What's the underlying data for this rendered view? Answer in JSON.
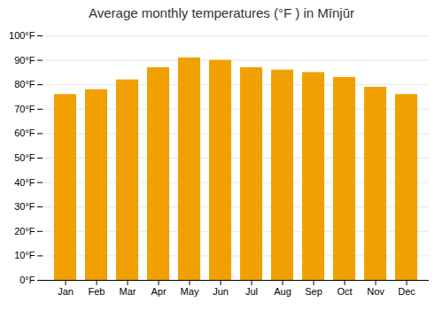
{
  "chart_data": {
    "type": "bar",
    "title": "Average monthly temperatures (°F ) in Mīnjūr",
    "categories": [
      "Jan",
      "Feb",
      "Mar",
      "Apr",
      "May",
      "Jun",
      "Jul",
      "Aug",
      "Sep",
      "Oct",
      "Nov",
      "Dec"
    ],
    "values": [
      76,
      78,
      82,
      87,
      91,
      90,
      87,
      86,
      85,
      83,
      79,
      76
    ],
    "color": "#F0A000",
    "ylim": [
      0,
      100
    ],
    "yticks": [
      {
        "value": 0,
        "label": "0°F"
      },
      {
        "value": 10,
        "label": "10°F"
      },
      {
        "value": 20,
        "label": "20°F"
      },
      {
        "value": 30,
        "label": "30°F"
      },
      {
        "value": 40,
        "label": "40°F"
      },
      {
        "value": 50,
        "label": "50°F"
      },
      {
        "value": 60,
        "label": "60°F"
      },
      {
        "value": 70,
        "label": "70°F"
      },
      {
        "value": 80,
        "label": "80°F"
      },
      {
        "value": 90,
        "label": "90°F"
      },
      {
        "value": 100,
        "label": "100°F"
      }
    ],
    "grid": true
  }
}
